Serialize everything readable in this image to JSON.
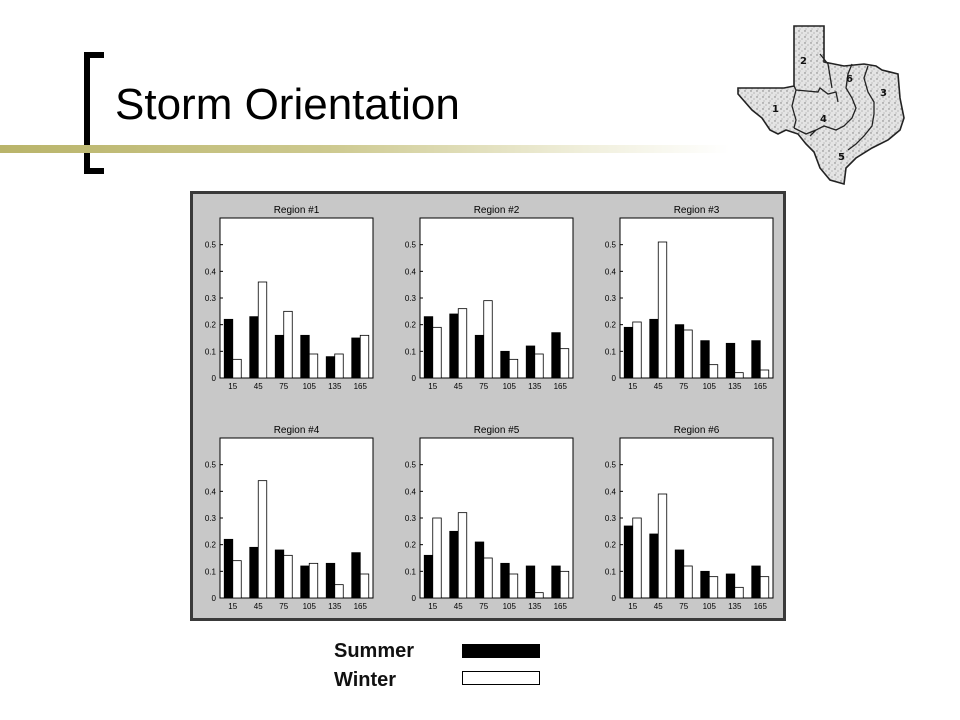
{
  "slide": {
    "title": "Storm Orientation"
  },
  "map": {
    "region_labels": [
      "1",
      "2",
      "3",
      "4",
      "5",
      "6"
    ]
  },
  "legend": {
    "summer_label": "Summer",
    "winter_label": "Winter",
    "summer_color": "#000000",
    "winter_color": "#ffffff"
  },
  "chart_data": [
    {
      "type": "bar",
      "title": "Region #1",
      "categories": [
        "15",
        "45",
        "75",
        "105",
        "135",
        "165"
      ],
      "series": [
        {
          "name": "Summer",
          "values": [
            0.22,
            0.23,
            0.16,
            0.16,
            0.08,
            0.15
          ]
        },
        {
          "name": "Winter",
          "values": [
            0.07,
            0.36,
            0.25,
            0.09,
            0.09,
            0.16
          ]
        }
      ],
      "ylim": [
        0,
        0.6
      ],
      "yticks": [
        "0",
        "0.1",
        "0.2",
        "0.3",
        "0.4",
        "0.5"
      ]
    },
    {
      "type": "bar",
      "title": "Region #2",
      "categories": [
        "15",
        "45",
        "75",
        "105",
        "135",
        "165"
      ],
      "series": [
        {
          "name": "Summer",
          "values": [
            0.23,
            0.24,
            0.16,
            0.1,
            0.12,
            0.17
          ]
        },
        {
          "name": "Winter",
          "values": [
            0.19,
            0.26,
            0.29,
            0.07,
            0.09,
            0.11
          ]
        }
      ],
      "ylim": [
        0,
        0.6
      ],
      "yticks": [
        "0",
        "0.1",
        "0.2",
        "0.3",
        "0.4",
        "0.5"
      ]
    },
    {
      "type": "bar",
      "title": "Region #3",
      "categories": [
        "15",
        "45",
        "75",
        "105",
        "135",
        "165"
      ],
      "series": [
        {
          "name": "Summer",
          "values": [
            0.19,
            0.22,
            0.2,
            0.14,
            0.13,
            0.14
          ]
        },
        {
          "name": "Winter",
          "values": [
            0.21,
            0.51,
            0.18,
            0.05,
            0.02,
            0.03
          ]
        }
      ],
      "ylim": [
        0,
        0.6
      ],
      "yticks": [
        "0",
        "0.1",
        "0.2",
        "0.3",
        "0.4",
        "0.5"
      ]
    },
    {
      "type": "bar",
      "title": "Region #4",
      "categories": [
        "15",
        "45",
        "75",
        "105",
        "135",
        "165"
      ],
      "series": [
        {
          "name": "Summer",
          "values": [
            0.22,
            0.19,
            0.18,
            0.12,
            0.13,
            0.17
          ]
        },
        {
          "name": "Winter",
          "values": [
            0.14,
            0.44,
            0.16,
            0.13,
            0.05,
            0.09
          ]
        }
      ],
      "ylim": [
        0,
        0.6
      ],
      "yticks": [
        "0",
        "0.1",
        "0.2",
        "0.3",
        "0.4",
        "0.5"
      ]
    },
    {
      "type": "bar",
      "title": "Region #5",
      "categories": [
        "15",
        "45",
        "75",
        "105",
        "135",
        "165"
      ],
      "series": [
        {
          "name": "Summer",
          "values": [
            0.16,
            0.25,
            0.21,
            0.13,
            0.12,
            0.12
          ]
        },
        {
          "name": "Winter",
          "values": [
            0.3,
            0.32,
            0.15,
            0.09,
            0.02,
            0.1
          ]
        }
      ],
      "ylim": [
        0,
        0.6
      ],
      "yticks": [
        "0",
        "0.1",
        "0.2",
        "0.3",
        "0.4",
        "0.5"
      ]
    },
    {
      "type": "bar",
      "title": "Region #6",
      "categories": [
        "15",
        "45",
        "75",
        "105",
        "135",
        "165"
      ],
      "series": [
        {
          "name": "Summer",
          "values": [
            0.27,
            0.24,
            0.18,
            0.1,
            0.09,
            0.12
          ]
        },
        {
          "name": "Winter",
          "values": [
            0.3,
            0.39,
            0.12,
            0.08,
            0.04,
            0.08
          ]
        }
      ],
      "ylim": [
        0,
        0.6
      ],
      "yticks": [
        "0",
        "0.1",
        "0.2",
        "0.3",
        "0.4",
        "0.5"
      ]
    }
  ]
}
